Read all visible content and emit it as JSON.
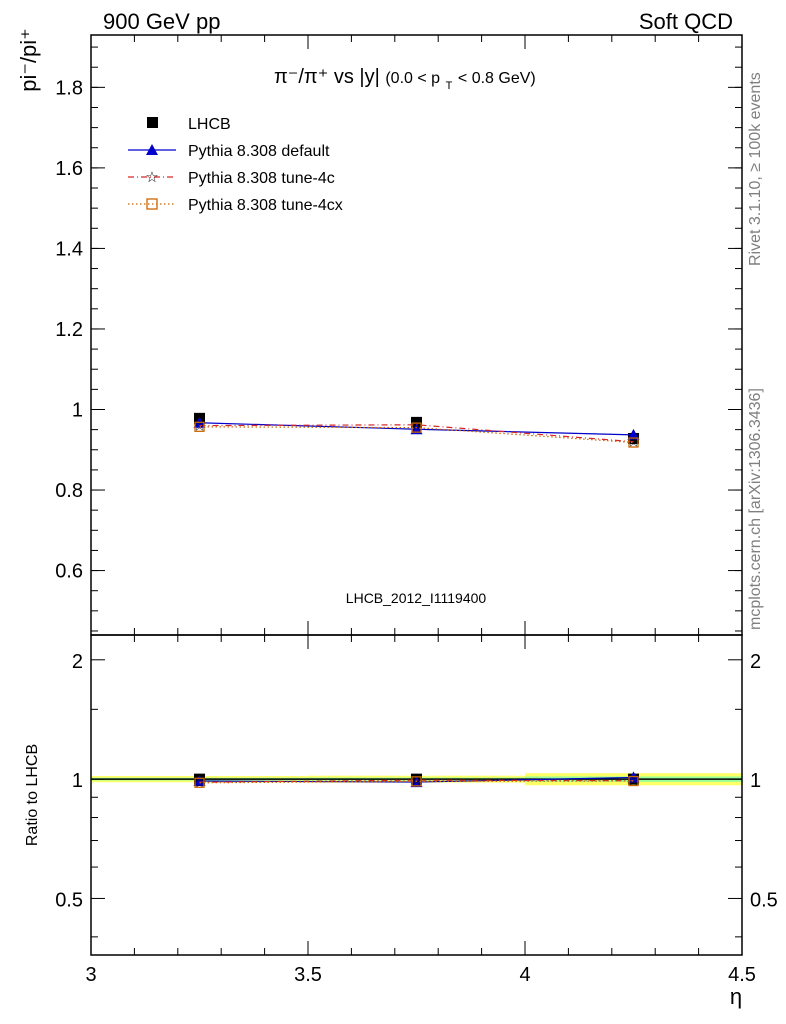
{
  "header": {
    "left": "900 GeV pp",
    "right": "Soft QCD"
  },
  "side_text": {
    "rivet": "Rivet 3.1.10, ≥ 100k events",
    "mcplots": "mcplots.cern.ch [arXiv:1306.3436]"
  },
  "watermark": "LHCB_2012_I1119400",
  "chart_data": {
    "type": "line",
    "title_parts": {
      "main": "π⁻/π⁺ vs |y|",
      "sub_open": "(0.0 < p",
      "sub_index": "T",
      "sub_close": " < 0.8 GeV)"
    },
    "ylabel": "pi⁻/pi⁺",
    "xlabel": "η",
    "xlim": [
      3.0,
      4.5
    ],
    "ylim": [
      0.44,
      1.93
    ],
    "x_ticks": [
      "3",
      "3.5",
      "4",
      "4.5"
    ],
    "y_ticks": [
      "0.6",
      "0.8",
      "1",
      "1.2",
      "1.4",
      "1.6",
      "1.8"
    ],
    "x": [
      3.25,
      3.75,
      4.25
    ],
    "series": [
      {
        "name": "LHCB",
        "values": [
          0.978,
          0.968,
          0.928
        ],
        "color": "#000000",
        "style": "data"
      },
      {
        "name": "Pythia 8.308 default",
        "values": [
          0.967,
          0.951,
          0.937
        ],
        "color": "#0000cc",
        "style": "solid-triangle"
      },
      {
        "name": "Pythia 8.308 tune-4c",
        "values": [
          0.96,
          0.962,
          0.92
        ],
        "color": "#d62728",
        "style": "dashdot-star"
      },
      {
        "name": "Pythia 8.308 tune-4cx",
        "values": [
          0.957,
          0.955,
          0.918
        ],
        "color": "#cc6600",
        "style": "dotted-square"
      }
    ],
    "ratio": {
      "ylabel": "Ratio to LHCB",
      "ylim": [
        0.36,
        2.31
      ],
      "y_ticks": [
        "0.5",
        "1",
        "2"
      ],
      "series": [
        {
          "name": "Pythia 8.308 default",
          "values": [
            0.989,
            0.983,
            1.01
          ]
        },
        {
          "name": "Pythia 8.308 tune-4c",
          "values": [
            0.982,
            0.994,
            0.991
          ]
        },
        {
          "name": "Pythia 8.308 tune-4cx",
          "values": [
            0.979,
            0.987,
            0.989
          ]
        }
      ],
      "band_color": "#ffff66",
      "inner_band_color": "#99ff99"
    }
  }
}
